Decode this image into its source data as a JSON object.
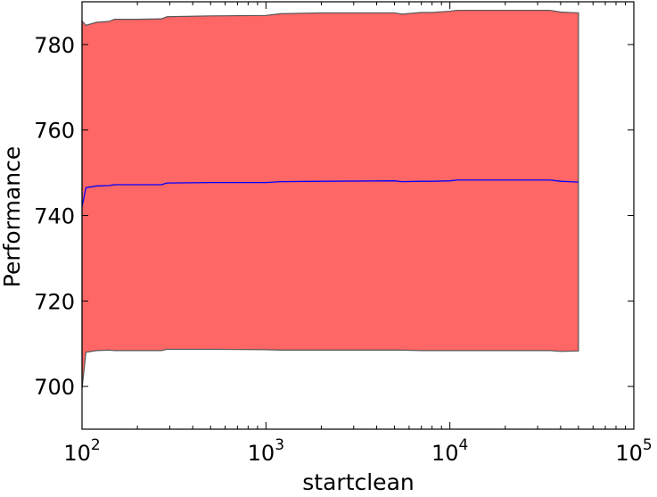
{
  "chart_data": {
    "type": "area",
    "xlabel": "startclean",
    "ylabel": "Performance",
    "xscale": "log",
    "xlim": [
      100,
      100000
    ],
    "ylim": [
      690,
      790
    ],
    "grid": false,
    "x_ticks": [
      {
        "value": 100,
        "base": "10",
        "exp": "2"
      },
      {
        "value": 1000,
        "base": "10",
        "exp": "3"
      },
      {
        "value": 10000,
        "base": "10",
        "exp": "4"
      },
      {
        "value": 100000,
        "base": "10",
        "exp": "5"
      }
    ],
    "y_ticks": [
      700,
      720,
      740,
      760,
      780
    ],
    "colors": {
      "band_fill": "#ff6666",
      "band_edge": "#555555",
      "mean_line": "#0000ff"
    },
    "x": [
      100,
      105,
      120,
      140,
      150,
      200,
      270,
      290,
      500,
      1000,
      1200,
      2000,
      5000,
      5500,
      7000,
      8000,
      10000,
      11000,
      20000,
      35000,
      40000,
      50000
    ],
    "series": [
      {
        "role": "upper",
        "values": [
          785.5,
          784.5,
          785.2,
          785.4,
          785.9,
          785.9,
          786.0,
          786.5,
          786.7,
          786.8,
          787.2,
          787.4,
          787.4,
          787.1,
          787.5,
          787.5,
          787.8,
          788.0,
          788.0,
          788.0,
          787.6,
          787.4
        ]
      },
      {
        "role": "mean",
        "values": [
          742.0,
          746.5,
          746.9,
          747.0,
          747.2,
          747.2,
          747.2,
          747.6,
          747.7,
          747.7,
          747.9,
          748.0,
          748.1,
          747.9,
          748.0,
          748.0,
          748.1,
          748.3,
          748.3,
          748.3,
          748.0,
          747.8
        ]
      },
      {
        "role": "lower",
        "values": [
          699.5,
          708.0,
          708.4,
          708.5,
          708.4,
          708.4,
          708.4,
          708.7,
          708.7,
          708.6,
          708.5,
          708.5,
          708.5,
          708.5,
          708.4,
          708.4,
          708.4,
          708.4,
          708.4,
          708.4,
          708.2,
          708.3
        ]
      }
    ]
  }
}
